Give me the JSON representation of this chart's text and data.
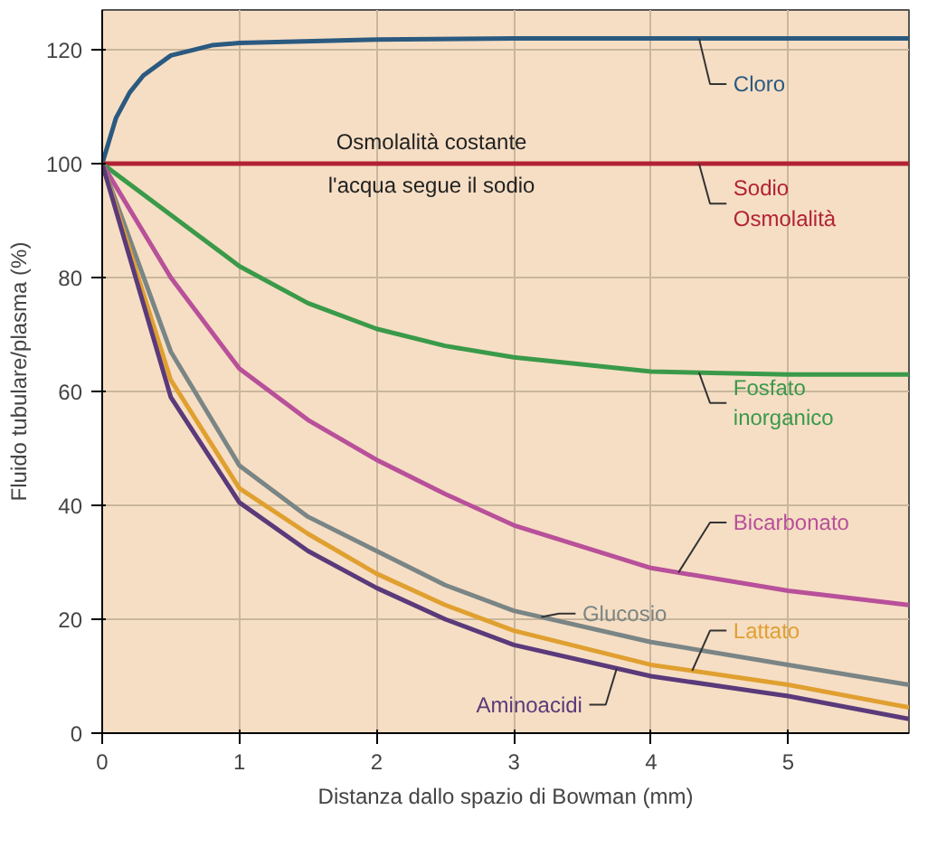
{
  "chart_data": {
    "type": "line",
    "xlabel": "Distanza dallo spazio di Bowman (mm)",
    "ylabel": "Fluido tubulare/plasma (%)",
    "xlim": [
      0,
      5.88
    ],
    "ylim": [
      0,
      127
    ],
    "xticks": [
      0,
      1,
      2,
      3,
      4,
      5
    ],
    "yticks": [
      0,
      20,
      40,
      60,
      80,
      100,
      120
    ],
    "grid": true,
    "annotations": [
      {
        "text": "Osmolalità costante",
        "x": 2.4,
        "y": 100
      },
      {
        "text": "l'acqua segue il sodio",
        "x": 2.4,
        "y": 100
      }
    ],
    "series": [
      {
        "name": "Cloro",
        "color": "#2b5a80",
        "x": [
          0,
          0.1,
          0.2,
          0.3,
          0.5,
          0.8,
          1,
          2,
          3,
          5.88
        ],
        "values": [
          100,
          108,
          112.5,
          115.5,
          119,
          120.8,
          121.2,
          121.8,
          122,
          122
        ]
      },
      {
        "name": "Sodio\nOsmolalità",
        "color": "#b22234",
        "x": [
          0,
          5.88
        ],
        "values": [
          100,
          100
        ]
      },
      {
        "name": "Fosfato\ninorganico",
        "color": "#3a9a4a",
        "x": [
          0,
          0.5,
          1,
          1.5,
          2,
          2.5,
          3,
          4,
          5,
          5.88
        ],
        "values": [
          100,
          91,
          82,
          75.5,
          71,
          68,
          66,
          63.5,
          63,
          63
        ]
      },
      {
        "name": "Bicarbonato",
        "color": "#b8509a",
        "x": [
          0,
          0.5,
          1,
          1.5,
          2,
          2.5,
          3,
          4,
          5,
          5.88
        ],
        "values": [
          100,
          80,
          64,
          55,
          48,
          42,
          36.5,
          29,
          25,
          22.5
        ]
      },
      {
        "name": "Glucosio",
        "color": "#7a8585",
        "x": [
          0,
          0.5,
          1,
          1.5,
          2,
          2.5,
          3,
          4,
          5,
          5.88
        ],
        "values": [
          100,
          67,
          47,
          38,
          32,
          26,
          21.5,
          16,
          12,
          8.5
        ]
      },
      {
        "name": "Lattato",
        "color": "#e0a030",
        "x": [
          0,
          0.5,
          1,
          1.5,
          2,
          2.5,
          3,
          4,
          5,
          5.88
        ],
        "values": [
          100,
          62,
          43,
          35,
          28,
          22.5,
          18,
          12,
          8.5,
          4.5
        ]
      },
      {
        "name": "Aminoacidi",
        "color": "#5a3a7a",
        "x": [
          0,
          0.5,
          1,
          1.5,
          2,
          2.5,
          3,
          4,
          5,
          5.88
        ],
        "values": [
          100,
          59,
          40.5,
          32,
          25.5,
          20,
          15.5,
          10,
          6.5,
          2.5
        ]
      }
    ]
  }
}
